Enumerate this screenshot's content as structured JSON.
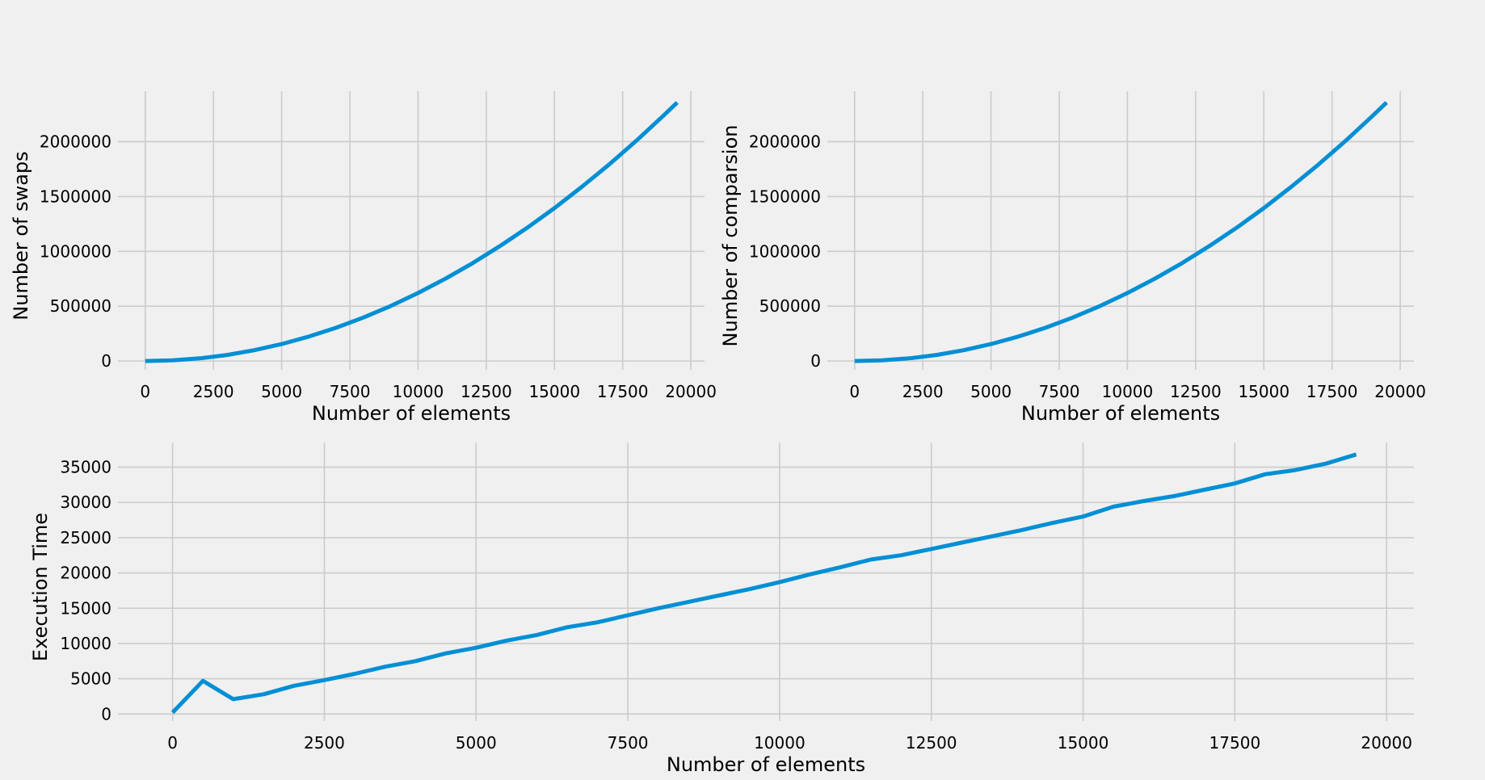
{
  "colors": {
    "background": "#f0f0f0",
    "grid": "#cbcbcb",
    "series": "#008fd5",
    "text": "#000000"
  },
  "chart_data": [
    {
      "type": "line",
      "title": "",
      "xlabel": "Number of elements",
      "ylabel": "Number of swaps",
      "xlim": [
        -1000,
        20500
      ],
      "ylim": [
        -80000,
        2460000
      ],
      "xticks": [
        0,
        2500,
        5000,
        7500,
        10000,
        12500,
        15000,
        17500,
        20000
      ],
      "yticks": [
        0,
        500000,
        1000000,
        1500000,
        2000000
      ],
      "grid": true,
      "legend": "none",
      "series": [
        {
          "x": [
            0,
            1000,
            2000,
            3000,
            4000,
            5000,
            6000,
            7000,
            8000,
            9000,
            10000,
            11000,
            12000,
            13000,
            14000,
            15000,
            16000,
            17000,
            18000,
            19000,
            19500
          ],
          "y": [
            0,
            6200,
            24800,
            55800,
            99200,
            155000,
            223200,
            303800,
            396800,
            502200,
            620000,
            750200,
            892800,
            1047800,
            1215200,
            1395000,
            1587200,
            1791800,
            2008800,
            2238200,
            2357500
          ]
        }
      ]
    },
    {
      "type": "line",
      "title": "",
      "xlabel": "Number of elements",
      "ylabel": "Number of comparsion",
      "xlim": [
        -1000,
        20500
      ],
      "ylim": [
        -80000,
        2460000
      ],
      "xticks": [
        0,
        2500,
        5000,
        7500,
        10000,
        12500,
        15000,
        17500,
        20000
      ],
      "yticks": [
        0,
        500000,
        1000000,
        1500000,
        2000000
      ],
      "grid": true,
      "legend": "none",
      "series": [
        {
          "x": [
            0,
            1000,
            2000,
            3000,
            4000,
            5000,
            6000,
            7000,
            8000,
            9000,
            10000,
            11000,
            12000,
            13000,
            14000,
            15000,
            16000,
            17000,
            18000,
            19000,
            19500
          ],
          "y": [
            0,
            6200,
            24800,
            55800,
            99200,
            155000,
            223200,
            303800,
            396800,
            502200,
            620000,
            750200,
            892800,
            1047800,
            1215200,
            1395000,
            1587200,
            1791800,
            2008800,
            2238200,
            2357500
          ]
        }
      ]
    },
    {
      "type": "line",
      "title": "",
      "xlabel": "Number of elements",
      "ylabel": "Execution Time",
      "xlim": [
        -900,
        20450
      ],
      "ylim": [
        -1000,
        38500
      ],
      "xticks": [
        0,
        2500,
        5000,
        7500,
        10000,
        12500,
        15000,
        17500,
        20000
      ],
      "yticks": [
        0,
        5000,
        10000,
        15000,
        20000,
        25000,
        30000,
        35000
      ],
      "grid": true,
      "legend": "none",
      "series": [
        {
          "x": [
            0,
            500,
            1000,
            1500,
            2000,
            2500,
            3000,
            3500,
            4000,
            4500,
            5000,
            5500,
            6000,
            6500,
            7000,
            7500,
            8000,
            8500,
            9000,
            9500,
            10000,
            10500,
            11000,
            11500,
            12000,
            12500,
            13000,
            13500,
            14000,
            14500,
            15000,
            15500,
            16000,
            16500,
            17000,
            17500,
            18000,
            18500,
            19000,
            19500
          ],
          "y": [
            200,
            4700,
            2100,
            2800,
            4000,
            4800,
            5700,
            6700,
            7500,
            8600,
            9400,
            10400,
            11200,
            12300,
            13000,
            14000,
            15000,
            15900,
            16800,
            17700,
            18700,
            19800,
            20800,
            21900,
            22500,
            23400,
            24300,
            25200,
            26100,
            27100,
            28000,
            29400,
            30200,
            30900,
            31800,
            32700,
            34000,
            34600,
            35500,
            36800
          ]
        }
      ]
    }
  ]
}
